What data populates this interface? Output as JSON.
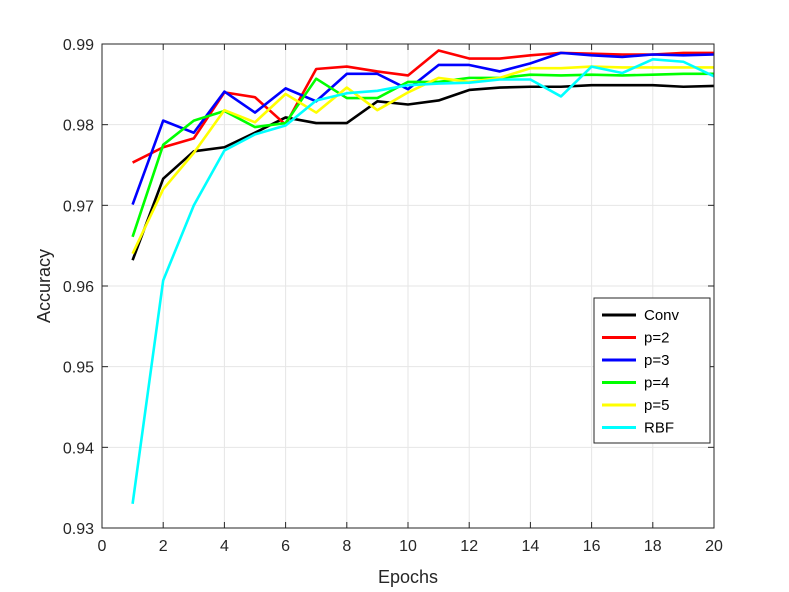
{
  "chart_data": {
    "type": "line",
    "title": "",
    "xlabel": "Epochs",
    "ylabel": "Accuracy",
    "xlim": [
      0,
      20
    ],
    "ylim": [
      0.93,
      0.99
    ],
    "xticks": [
      0,
      2,
      4,
      6,
      8,
      10,
      12,
      14,
      16,
      18,
      20
    ],
    "yticks": [
      0.93,
      0.94,
      0.95,
      0.96,
      0.97,
      0.98,
      0.99
    ],
    "xtick_labels": [
      "0",
      "2",
      "4",
      "6",
      "8",
      "10",
      "12",
      "14",
      "16",
      "18",
      "20"
    ],
    "ytick_labels": [
      "0.93",
      "0.94",
      "0.95",
      "0.96",
      "0.97",
      "0.98",
      "0.99"
    ],
    "grid": true,
    "legend_position": "right-middle",
    "x": [
      1,
      2,
      3,
      4,
      5,
      6,
      7,
      8,
      9,
      10,
      11,
      12,
      13,
      14,
      15,
      16,
      17,
      18,
      19,
      20
    ],
    "series": [
      {
        "name": "Conv",
        "color": "#000000",
        "values": [
          0.9632,
          0.9733,
          0.9767,
          0.9772,
          0.979,
          0.9809,
          0.9802,
          0.9802,
          0.9829,
          0.9825,
          0.983,
          0.9843,
          0.9846,
          0.9847,
          0.9847,
          0.9849,
          0.9849,
          0.9849,
          0.9847,
          0.9848
        ]
      },
      {
        "name": "p=2",
        "color": "#ff0000",
        "values": [
          0.9753,
          0.9772,
          0.9783,
          0.984,
          0.9834,
          0.98,
          0.9869,
          0.9872,
          0.9866,
          0.9861,
          0.9892,
          0.9882,
          0.9882,
          0.9886,
          0.9889,
          0.9888,
          0.9887,
          0.9887,
          0.9889,
          0.9889
        ]
      },
      {
        "name": "p=3",
        "color": "#0000ff",
        "values": [
          0.9701,
          0.9805,
          0.979,
          0.9841,
          0.9815,
          0.9845,
          0.9829,
          0.9863,
          0.9863,
          0.9844,
          0.9874,
          0.9874,
          0.9866,
          0.9876,
          0.9889,
          0.9886,
          0.9884,
          0.9887,
          0.9886,
          0.9887
        ]
      },
      {
        "name": "p=4",
        "color": "#00ff00",
        "values": [
          0.9661,
          0.9775,
          0.9805,
          0.9817,
          0.9797,
          0.9802,
          0.9857,
          0.9833,
          0.9833,
          0.9853,
          0.9853,
          0.9858,
          0.9858,
          0.9862,
          0.9861,
          0.9862,
          0.9861,
          0.9862,
          0.9863,
          0.9863
        ]
      },
      {
        "name": "p=5",
        "color": "#ffff00",
        "values": [
          0.964,
          0.972,
          0.9765,
          0.9818,
          0.9803,
          0.9838,
          0.9815,
          0.9846,
          0.9818,
          0.984,
          0.9858,
          0.9853,
          0.9858,
          0.987,
          0.987,
          0.9872,
          0.9871,
          0.9871,
          0.9871,
          0.9871
        ]
      },
      {
        "name": "RBF",
        "color": "#00ffff",
        "values": [
          0.933,
          0.9607,
          0.97,
          0.9768,
          0.9788,
          0.9799,
          0.983,
          0.9839,
          0.9842,
          0.9849,
          0.9851,
          0.9852,
          0.9856,
          0.9856,
          0.9835,
          0.9872,
          0.9864,
          0.9881,
          0.9878,
          0.986
        ]
      }
    ]
  }
}
